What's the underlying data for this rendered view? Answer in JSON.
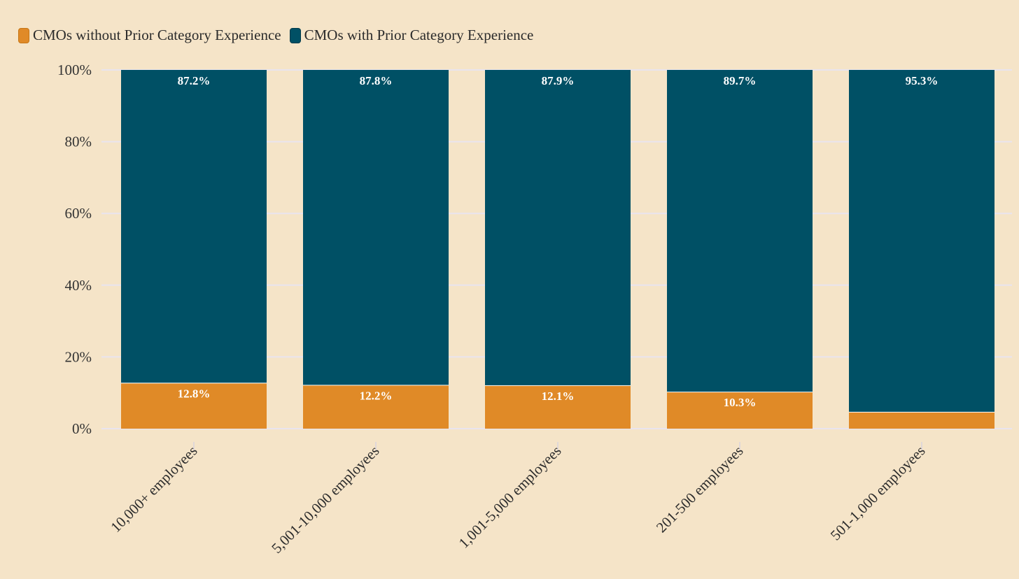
{
  "chart_data": {
    "type": "bar",
    "stacked": true,
    "categories": [
      "10,000+ employees",
      "5,001-10,000 employees",
      "1,001-5,000 employees",
      "201-500 employees",
      "501-1,000 employees"
    ],
    "series": [
      {
        "name": "CMOs without Prior Category Experience",
        "color": "#e08a27",
        "values": [
          12.8,
          12.2,
          12.1,
          10.3,
          4.7
        ],
        "labels": [
          "12.8%",
          "12.2%",
          "12.1%",
          "10.3%",
          ""
        ]
      },
      {
        "name": "CMOs with Prior Category Experience",
        "color": "#005065",
        "values": [
          87.2,
          87.8,
          87.9,
          89.7,
          95.3
        ],
        "labels": [
          "87.2%",
          "87.8%",
          "87.9%",
          "89.7%",
          "95.3%"
        ]
      }
    ],
    "yticks": [
      "0%",
      "20%",
      "40%",
      "60%",
      "80%",
      "100%"
    ],
    "ylim": [
      0,
      100
    ],
    "xlabel": "",
    "ylabel": "",
    "legend_position": "top-left",
    "grid": true
  }
}
